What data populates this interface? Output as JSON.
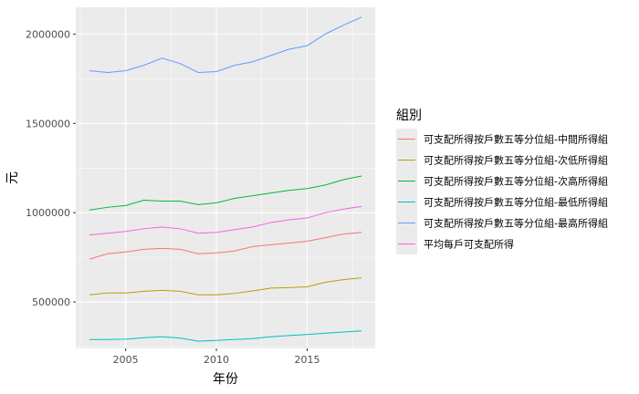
{
  "chart_data": {
    "type": "line",
    "xlabel": "年份",
    "ylabel": "元",
    "xlim": [
      2002.25,
      2018.75
    ],
    "ylim": [
      240000,
      2150000
    ],
    "xticks": [
      2005,
      2010,
      2015
    ],
    "xtick_labels": [
      "2005",
      "2010",
      "2015"
    ],
    "yticks": [
      500000,
      1000000,
      1500000,
      2000000
    ],
    "ytick_labels": [
      "500000",
      "1000000",
      "1500000",
      "2000000"
    ],
    "x": [
      2003,
      2004,
      2005,
      2006,
      2007,
      2008,
      2009,
      2010,
      2011,
      2012,
      2013,
      2014,
      2015,
      2016,
      2017,
      2018
    ],
    "legend_title": "組別",
    "legend_position": "right",
    "grid": true,
    "series": [
      {
        "name": "可支配所得按戶數五等分位組-中間所得組",
        "color": "#F8766D",
        "values": [
          740000,
          770000,
          780000,
          795000,
          800000,
          795000,
          770000,
          775000,
          785000,
          810000,
          820000,
          830000,
          840000,
          860000,
          880000,
          890000
        ]
      },
      {
        "name": "可支配所得按戶數五等分位組-次低所得組",
        "color": "#B79F00",
        "values": [
          540000,
          550000,
          550000,
          560000,
          565000,
          560000,
          540000,
          540000,
          548000,
          562000,
          578000,
          580000,
          585000,
          610000,
          625000,
          635000
        ]
      },
      {
        "name": "可支配所得按戶數五等分位組-次高所得組",
        "color": "#00BA38",
        "values": [
          1015000,
          1030000,
          1040000,
          1070000,
          1065000,
          1065000,
          1045000,
          1055000,
          1080000,
          1095000,
          1110000,
          1125000,
          1135000,
          1155000,
          1185000,
          1205000
        ]
      },
      {
        "name": "可支配所得按戶數五等分位組-最低所得組",
        "color": "#00BFC4",
        "values": [
          290000,
          290000,
          292000,
          300000,
          305000,
          298000,
          280000,
          285000,
          290000,
          295000,
          305000,
          312000,
          318000,
          325000,
          332000,
          338000
        ]
      },
      {
        "name": "可支配所得按戶數五等分位組-最高所得組",
        "color": "#619CFF",
        "values": [
          1795000,
          1785000,
          1795000,
          1825000,
          1865000,
          1835000,
          1785000,
          1790000,
          1825000,
          1845000,
          1880000,
          1915000,
          1935000,
          2000000,
          2050000,
          2095000
        ]
      },
      {
        "name": "平均每戶可支配所得",
        "color": "#F564E3",
        "values": [
          875000,
          885000,
          895000,
          910000,
          920000,
          910000,
          885000,
          890000,
          905000,
          920000,
          945000,
          960000,
          970000,
          1000000,
          1020000,
          1035000
        ]
      }
    ]
  }
}
